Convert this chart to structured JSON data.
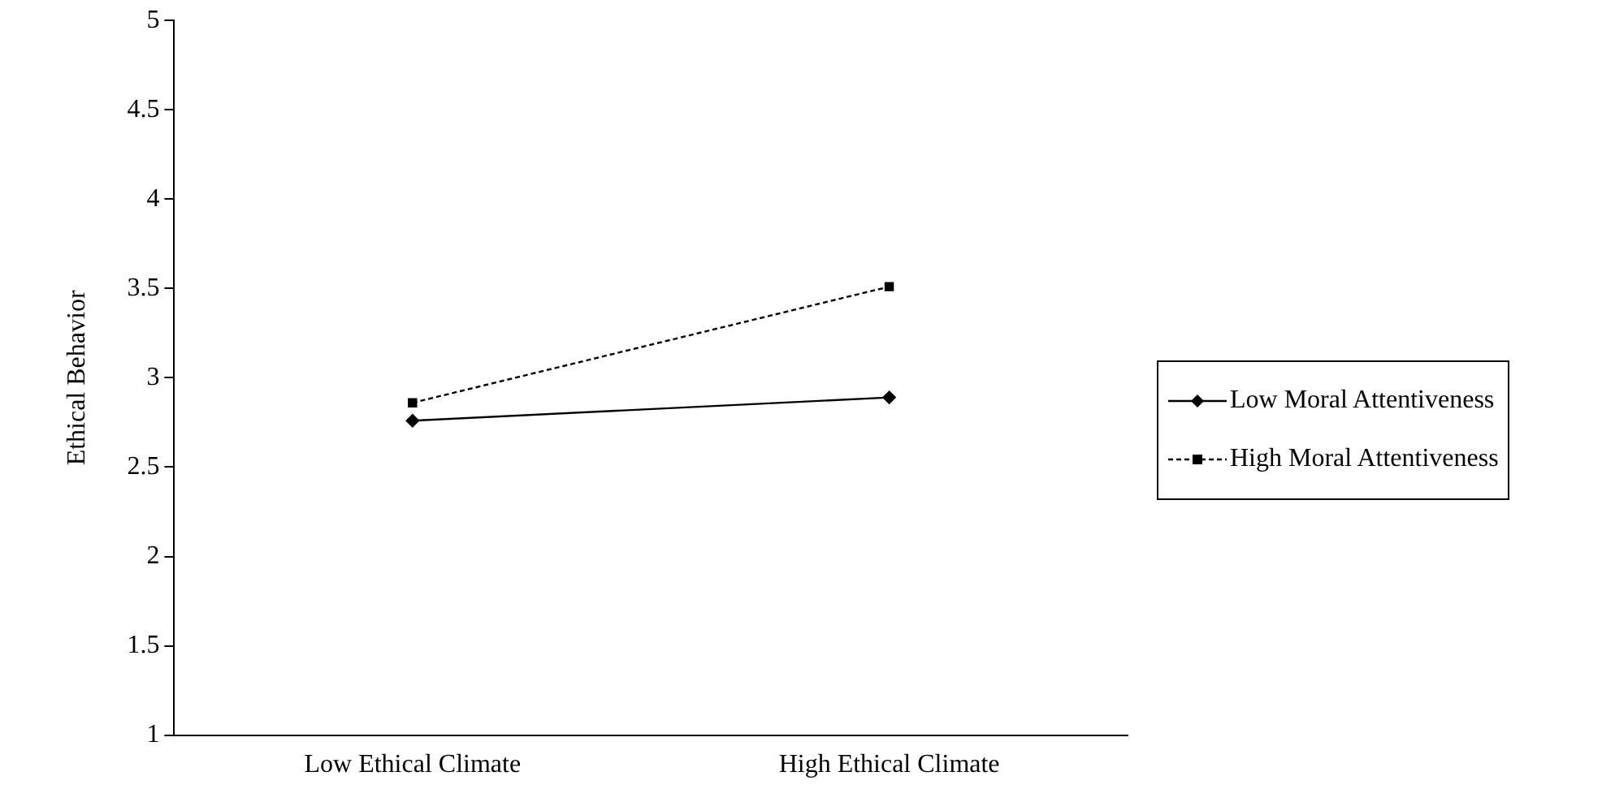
{
  "chart_data": {
    "type": "line",
    "ylabel": "Ethical Behavior",
    "categories": [
      "Low Ethical Climate",
      "High Ethical Climate"
    ],
    "series": [
      {
        "name": "Low Moral Attentiveness",
        "color": "#000000",
        "values": [
          2.76,
          2.89
        ],
        "marker": "diamond",
        "line_style": "solid"
      },
      {
        "name": "High Moral Attentiveness",
        "color": "#000000",
        "values": [
          2.86,
          3.51
        ],
        "marker": "square",
        "line_style": "dashed"
      }
    ],
    "ylim": [
      1,
      5
    ],
    "yticks": [
      1,
      1.5,
      2,
      2.5,
      3,
      3.5,
      4,
      4.5,
      5
    ],
    "grid": false,
    "legend": "right"
  }
}
